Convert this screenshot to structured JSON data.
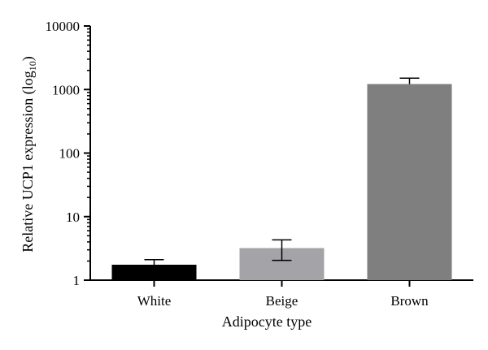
{
  "chart_data": {
    "type": "bar",
    "title": "",
    "xlabel": "Adipocyte type",
    "ylabel": "Relative UCP1 expression (log",
    "ylabel_subscript": "10",
    "ylabel_suffix": ")",
    "yscale": "log",
    "ylim": [
      1,
      10000
    ],
    "yticks": [
      1,
      10,
      100,
      1000,
      10000
    ],
    "ytick_labels": [
      "1",
      "10",
      "100",
      "1000",
      "10000"
    ],
    "categories": [
      "White",
      "Beige",
      "Brown"
    ],
    "values": [
      1.75,
      3.2,
      1220
    ],
    "error_upper": [
      2.1,
      4.3,
      1510
    ],
    "error_lower": [
      null,
      2.05,
      null
    ],
    "colors": [
      "#000000",
      "#a4a3a8",
      "#7f7f7f"
    ],
    "grid": false
  }
}
